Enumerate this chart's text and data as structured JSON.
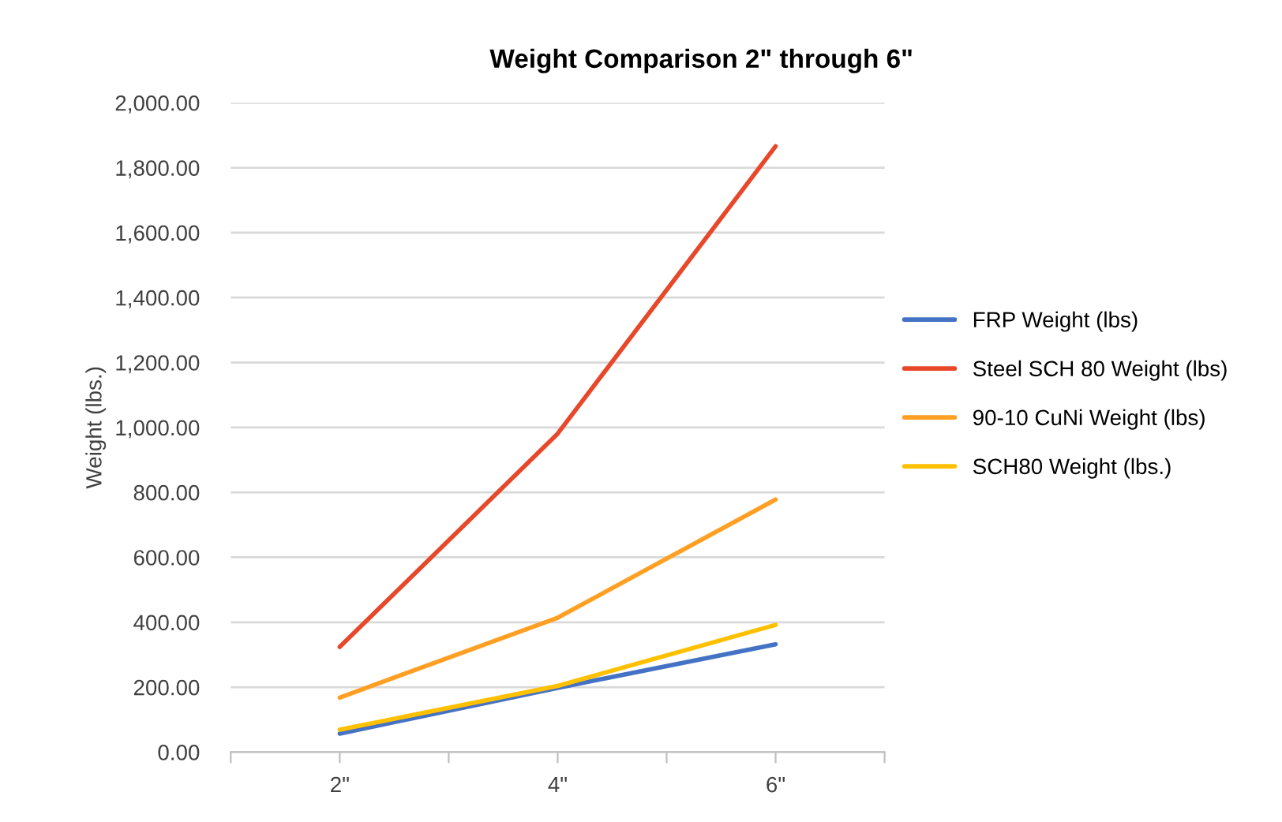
{
  "chart_data": {
    "type": "line",
    "title": "Weight Comparison 2\" through 6\"",
    "ylabel": "Weight (lbs.)",
    "x": [
      2,
      4,
      6
    ],
    "xlim": [
      1,
      7
    ],
    "xticks": [
      {
        "value": 1,
        "label": null
      },
      {
        "value": 2,
        "label": "2\""
      },
      {
        "value": 3,
        "label": null
      },
      {
        "value": 4,
        "label": "4\""
      },
      {
        "value": 5,
        "label": null
      },
      {
        "value": 6,
        "label": "6\""
      },
      {
        "value": 7,
        "label": null
      }
    ],
    "ylim": [
      0,
      2000
    ],
    "yticks": [
      {
        "value": 0,
        "label": "0.00"
      },
      {
        "value": 200,
        "label": "200.00"
      },
      {
        "value": 400,
        "label": "400.00"
      },
      {
        "value": 600,
        "label": "600.00"
      },
      {
        "value": 800,
        "label": "800.00"
      },
      {
        "value": 1000,
        "label": "1,000.00"
      },
      {
        "value": 1200,
        "label": "1,200.00"
      },
      {
        "value": 1400,
        "label": "1,400.00"
      },
      {
        "value": 1600,
        "label": "1,600.00"
      },
      {
        "value": 1800,
        "label": "1,800.00"
      },
      {
        "value": 2000,
        "label": "2,000.00"
      }
    ],
    "grid": "y",
    "legend": "right",
    "marker": "none",
    "line_style": "solid",
    "series": [
      {
        "name": "FRP Weight (lbs)",
        "color": "#4472c4",
        "values": [
          57,
          198,
          332
        ]
      },
      {
        "name": "Steel SCH 80 Weight (lbs)",
        "color": "#e8482a",
        "values": [
          324,
          981,
          1866
        ]
      },
      {
        "name": "90-10 CuNi Weight (lbs)",
        "color": "#ffa024",
        "values": [
          168,
          414,
          778
        ]
      },
      {
        "name": "SCH80 Weight (lbs.)",
        "color": "#ffc000",
        "values": [
          69,
          204,
          392
        ]
      }
    ]
  }
}
